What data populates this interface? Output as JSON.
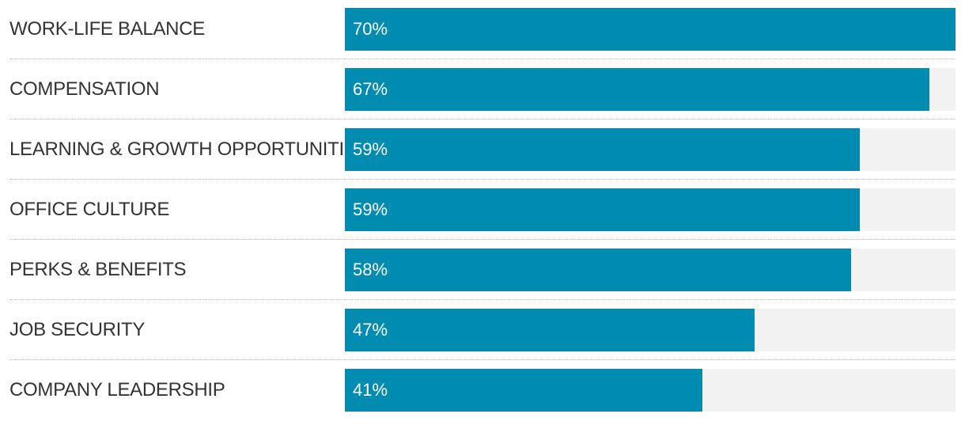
{
  "chart_data": {
    "type": "bar",
    "orientation": "horizontal",
    "categories": [
      "WORK-LIFE BALANCE",
      "COMPENSATION",
      "LEARNING & GROWTH OPPORTUNITIES",
      "OFFICE CULTURE",
      "PERKS & BENEFITS",
      "JOB SECURITY",
      "COMPANY LEADERSHIP"
    ],
    "values": [
      70,
      67,
      59,
      59,
      58,
      47,
      41
    ],
    "value_labels": [
      "70%",
      "67%",
      "59%",
      "59%",
      "58%",
      "47%",
      "41%"
    ],
    "unit": "%",
    "xlim": [
      0,
      70
    ],
    "grid": false,
    "legend": "none"
  },
  "colors": {
    "bar": "#008bb0",
    "track": "#f2f2f2",
    "label": "#333333",
    "value_text": "#ffffff",
    "divider": "#bdbdbd"
  }
}
